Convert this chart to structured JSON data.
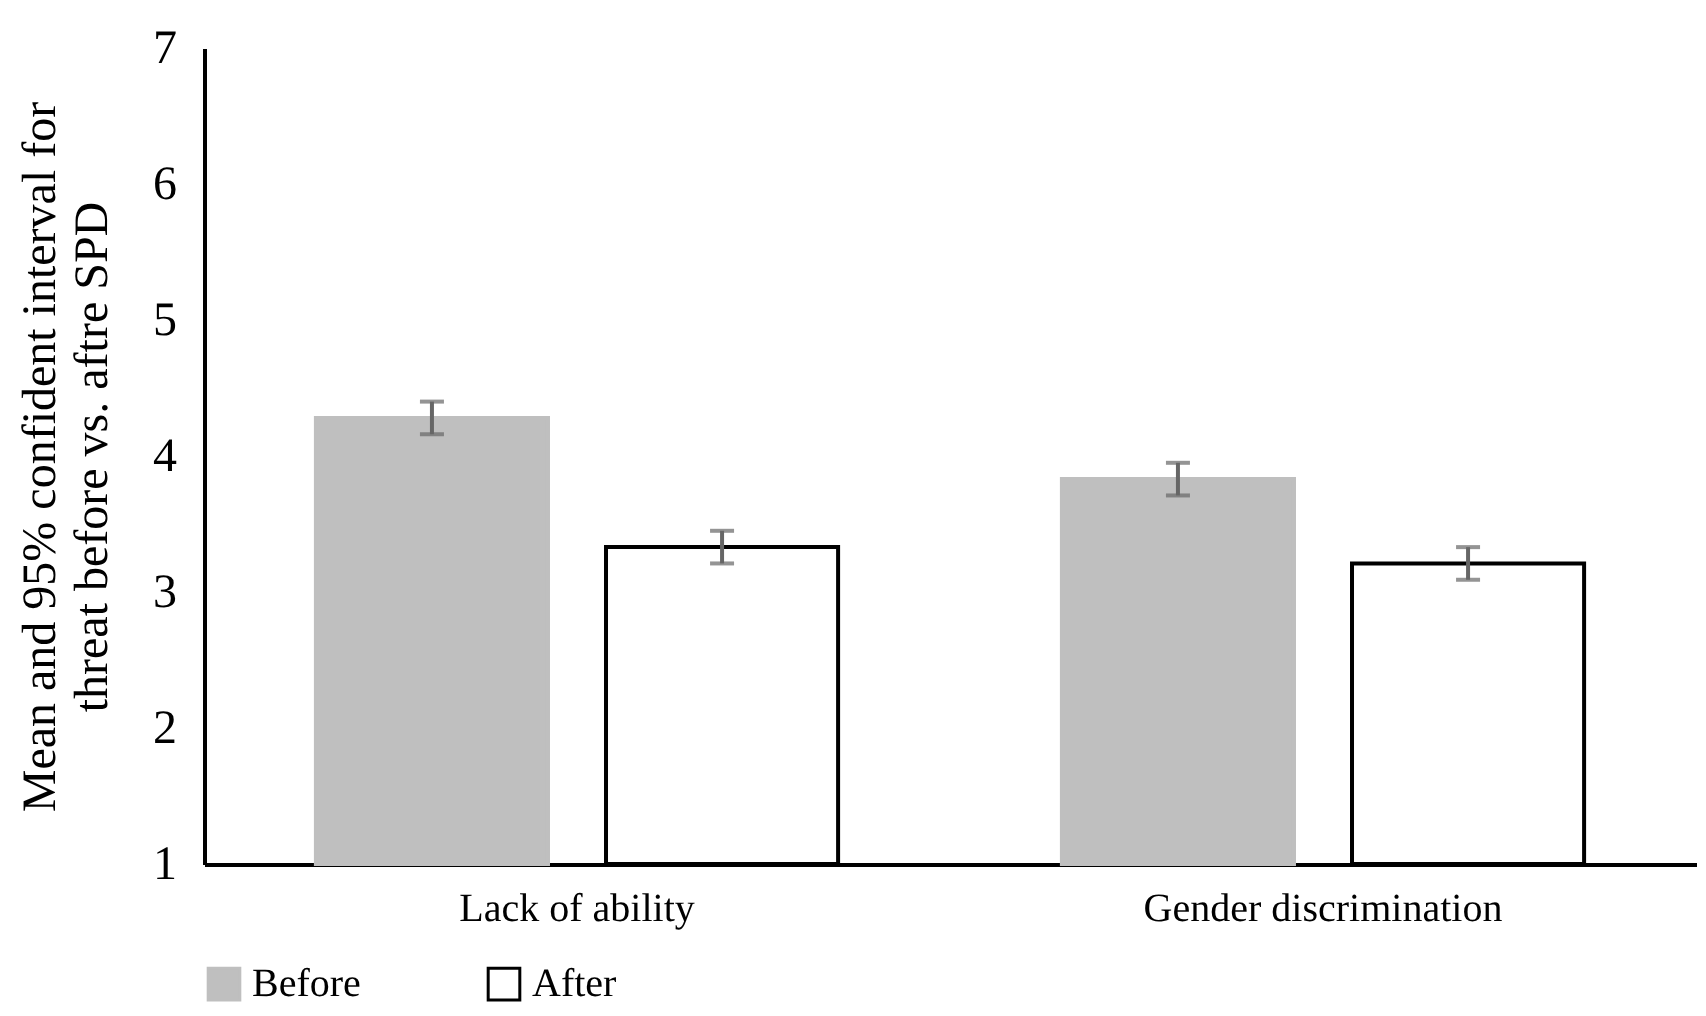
{
  "chart_data": {
    "type": "bar",
    "ylabel": "Mean and 95% confident interval for threat before vs. aftre SPD",
    "categories": [
      "Lack of ability",
      "Gender discrimination"
    ],
    "series": [
      {
        "name": "Before",
        "color": "#bfbfbf",
        "values": [
          4.28,
          3.83
        ],
        "errors": [
          0.12,
          0.12
        ]
      },
      {
        "name": "After",
        "color": "#ffffff",
        "values": [
          3.33,
          3.21
        ],
        "errors": [
          0.12,
          0.12
        ]
      }
    ],
    "ylim": [
      1,
      7
    ],
    "yticks": [
      1,
      2,
      3,
      4,
      5,
      6,
      7
    ],
    "grid": false,
    "legend": "bottom"
  }
}
